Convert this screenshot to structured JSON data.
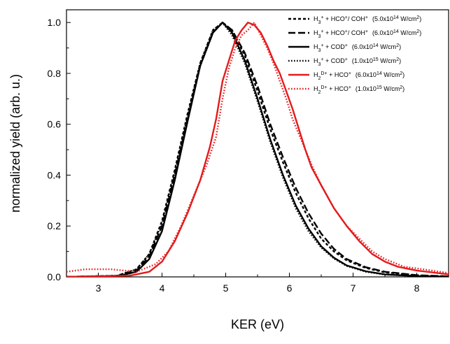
{
  "chart_data": {
    "type": "line",
    "xlabel": "KER (eV)",
    "ylabel": "normalized yield (arb. u.)",
    "xlim": [
      2.5,
      8.5
    ],
    "ylim": [
      0.0,
      1.05
    ],
    "xticks": [
      3,
      4,
      5,
      6,
      7,
      8
    ],
    "yticks": [
      0.0,
      0.2,
      0.4,
      0.6,
      0.8,
      1.0
    ],
    "ytick_labels": [
      "0.0",
      "0.2",
      "0.4",
      "0.6",
      "0.8",
      "1.0"
    ],
    "grid": false,
    "legend_position": "top-right",
    "series": [
      {
        "name_parts": [
          [
            "H",
            "3",
            "+",
            "",
            ""
          ],
          [
            " + HCO",
            "",
            "+",
            "",
            ""
          ],
          [
            "/ COH",
            "",
            "+",
            "",
            ""
          ]
        ],
        "intensity": "(5.0x10",
        "exp": "14",
        "unit": " W/cm",
        "unit_sup": "2",
        "unit_end": ")",
        "color": "#000000",
        "dash": "short-dash",
        "x": [
          2.5,
          3.3,
          3.6,
          3.8,
          4.0,
          4.2,
          4.4,
          4.6,
          4.8,
          4.95,
          5.1,
          5.3,
          5.5,
          5.7,
          5.9,
          6.1,
          6.3,
          6.5,
          6.7,
          6.9,
          7.2,
          7.5,
          8.0,
          8.5
        ],
        "values": [
          0.0,
          0.005,
          0.03,
          0.09,
          0.22,
          0.42,
          0.64,
          0.84,
          0.97,
          1.0,
          0.97,
          0.87,
          0.73,
          0.58,
          0.45,
          0.33,
          0.23,
          0.15,
          0.1,
          0.065,
          0.035,
          0.018,
          0.006,
          0.002
        ]
      },
      {
        "name_parts": [
          [
            "H",
            "3",
            "+",
            "",
            ""
          ],
          [
            " + HCO",
            "",
            "+",
            "",
            ""
          ],
          [
            "/ COH",
            "",
            "+",
            "",
            ""
          ]
        ],
        "intensity": "(6.0x10",
        "exp": "14",
        "unit": " W/cm",
        "unit_sup": "2",
        "unit_end": ")",
        "color": "#000000",
        "dash": "long-dash",
        "x": [
          2.5,
          3.3,
          3.6,
          3.8,
          4.0,
          4.2,
          4.4,
          4.6,
          4.8,
          4.95,
          5.1,
          5.3,
          5.5,
          5.7,
          5.9,
          6.1,
          6.3,
          6.5,
          6.7,
          6.9,
          7.2,
          7.5,
          8.0,
          8.5
        ],
        "values": [
          0.0,
          0.004,
          0.025,
          0.08,
          0.2,
          0.4,
          0.62,
          0.83,
          0.96,
          1.0,
          0.97,
          0.88,
          0.75,
          0.6,
          0.47,
          0.35,
          0.25,
          0.17,
          0.11,
          0.07,
          0.038,
          0.02,
          0.007,
          0.002
        ]
      },
      {
        "name_parts": [
          [
            "H",
            "3",
            "+",
            "",
            ""
          ],
          [
            " + COD",
            "",
            "+",
            "",
            ""
          ]
        ],
        "intensity": "(6.0x10",
        "exp": "14",
        "unit": " W/cm",
        "unit_sup": "2",
        "unit_end": ")",
        "color": "#000000",
        "dash": "solid",
        "x": [
          2.5,
          3.3,
          3.6,
          3.8,
          4.0,
          4.2,
          4.4,
          4.6,
          4.8,
          4.95,
          5.1,
          5.3,
          5.5,
          5.7,
          5.9,
          6.1,
          6.3,
          6.5,
          6.7,
          6.9,
          7.2,
          7.5,
          8.0,
          8.5
        ],
        "values": [
          0.0,
          0.003,
          0.02,
          0.07,
          0.18,
          0.38,
          0.61,
          0.83,
          0.96,
          1.0,
          0.96,
          0.85,
          0.7,
          0.54,
          0.4,
          0.28,
          0.19,
          0.12,
          0.075,
          0.045,
          0.022,
          0.01,
          0.003,
          0.001
        ]
      },
      {
        "name_parts": [
          [
            "H",
            "3",
            "+",
            "",
            ""
          ],
          [
            " + COD",
            "",
            "+",
            "",
            ""
          ]
        ],
        "intensity": "(1.0x10",
        "exp": "15",
        "unit": " W/cm",
        "unit_sup": "2",
        "unit_end": ")",
        "color": "#000000",
        "dash": "dotted",
        "x": [
          2.5,
          3.3,
          3.6,
          3.8,
          4.0,
          4.2,
          4.4,
          4.6,
          4.8,
          4.95,
          5.1,
          5.3,
          5.5,
          5.7,
          5.9,
          6.1,
          6.3,
          6.5,
          6.7,
          6.9,
          7.2,
          7.5,
          8.0,
          8.5
        ],
        "values": [
          0.0,
          0.005,
          0.03,
          0.09,
          0.21,
          0.41,
          0.63,
          0.84,
          0.97,
          1.0,
          0.95,
          0.84,
          0.69,
          0.53,
          0.39,
          0.27,
          0.18,
          0.115,
          0.072,
          0.043,
          0.02,
          0.009,
          0.003,
          0.001
        ]
      },
      {
        "name_parts": [
          [
            "H",
            "2",
            "D",
            "",
            ""
          ],
          [
            "",
            "",
            "+",
            "",
            ""
          ],
          [
            " + HCO",
            "",
            "+",
            "",
            ""
          ]
        ],
        "intensity": "(6.0x10",
        "exp": "14",
        "unit": " W/cm",
        "unit_sup": "2",
        "unit_end": ")",
        "color": "#e41a1c",
        "dash": "solid",
        "x": [
          2.5,
          3.5,
          3.8,
          4.0,
          4.2,
          4.4,
          4.6,
          4.75,
          4.85,
          4.95,
          5.05,
          5.15,
          5.25,
          5.35,
          5.45,
          5.55,
          5.65,
          5.75,
          5.85,
          5.95,
          6.05,
          6.15,
          6.25,
          6.35,
          6.5,
          6.7,
          6.9,
          7.1,
          7.3,
          7.5,
          7.7,
          8.0,
          8.5
        ],
        "values": [
          0.0,
          0.005,
          0.02,
          0.06,
          0.14,
          0.25,
          0.38,
          0.51,
          0.62,
          0.77,
          0.85,
          0.93,
          0.97,
          1.0,
          0.99,
          0.96,
          0.91,
          0.85,
          0.8,
          0.73,
          0.66,
          0.58,
          0.5,
          0.43,
          0.36,
          0.27,
          0.2,
          0.14,
          0.09,
          0.06,
          0.04,
          0.025,
          0.01
        ]
      },
      {
        "name_parts": [
          [
            "H",
            "2",
            "D",
            "",
            ""
          ],
          [
            "",
            "",
            "+",
            "",
            ""
          ],
          [
            " + HCO",
            "",
            "+",
            "",
            ""
          ]
        ],
        "intensity": "(1.0x10",
        "exp": "15",
        "unit": " W/cm",
        "unit_sup": "2",
        "unit_end": ")",
        "color": "#e41a1c",
        "dash": "dotted",
        "x": [
          2.5,
          2.8,
          3.2,
          3.6,
          3.9,
          4.1,
          4.3,
          4.5,
          4.7,
          4.85,
          4.95,
          5.05,
          5.15,
          5.25,
          5.35,
          5.45,
          5.55,
          5.65,
          5.75,
          5.85,
          5.95,
          6.05,
          6.2,
          6.35,
          6.5,
          6.7,
          6.9,
          7.1,
          7.3,
          7.5,
          7.8,
          8.1,
          8.5
        ],
        "values": [
          0.02,
          0.03,
          0.03,
          0.02,
          0.05,
          0.1,
          0.2,
          0.32,
          0.44,
          0.55,
          0.7,
          0.82,
          0.9,
          0.95,
          0.97,
          1.0,
          0.95,
          0.9,
          0.84,
          0.77,
          0.7,
          0.62,
          0.53,
          0.44,
          0.36,
          0.27,
          0.2,
          0.15,
          0.1,
          0.07,
          0.04,
          0.03,
          0.015
        ]
      }
    ]
  }
}
